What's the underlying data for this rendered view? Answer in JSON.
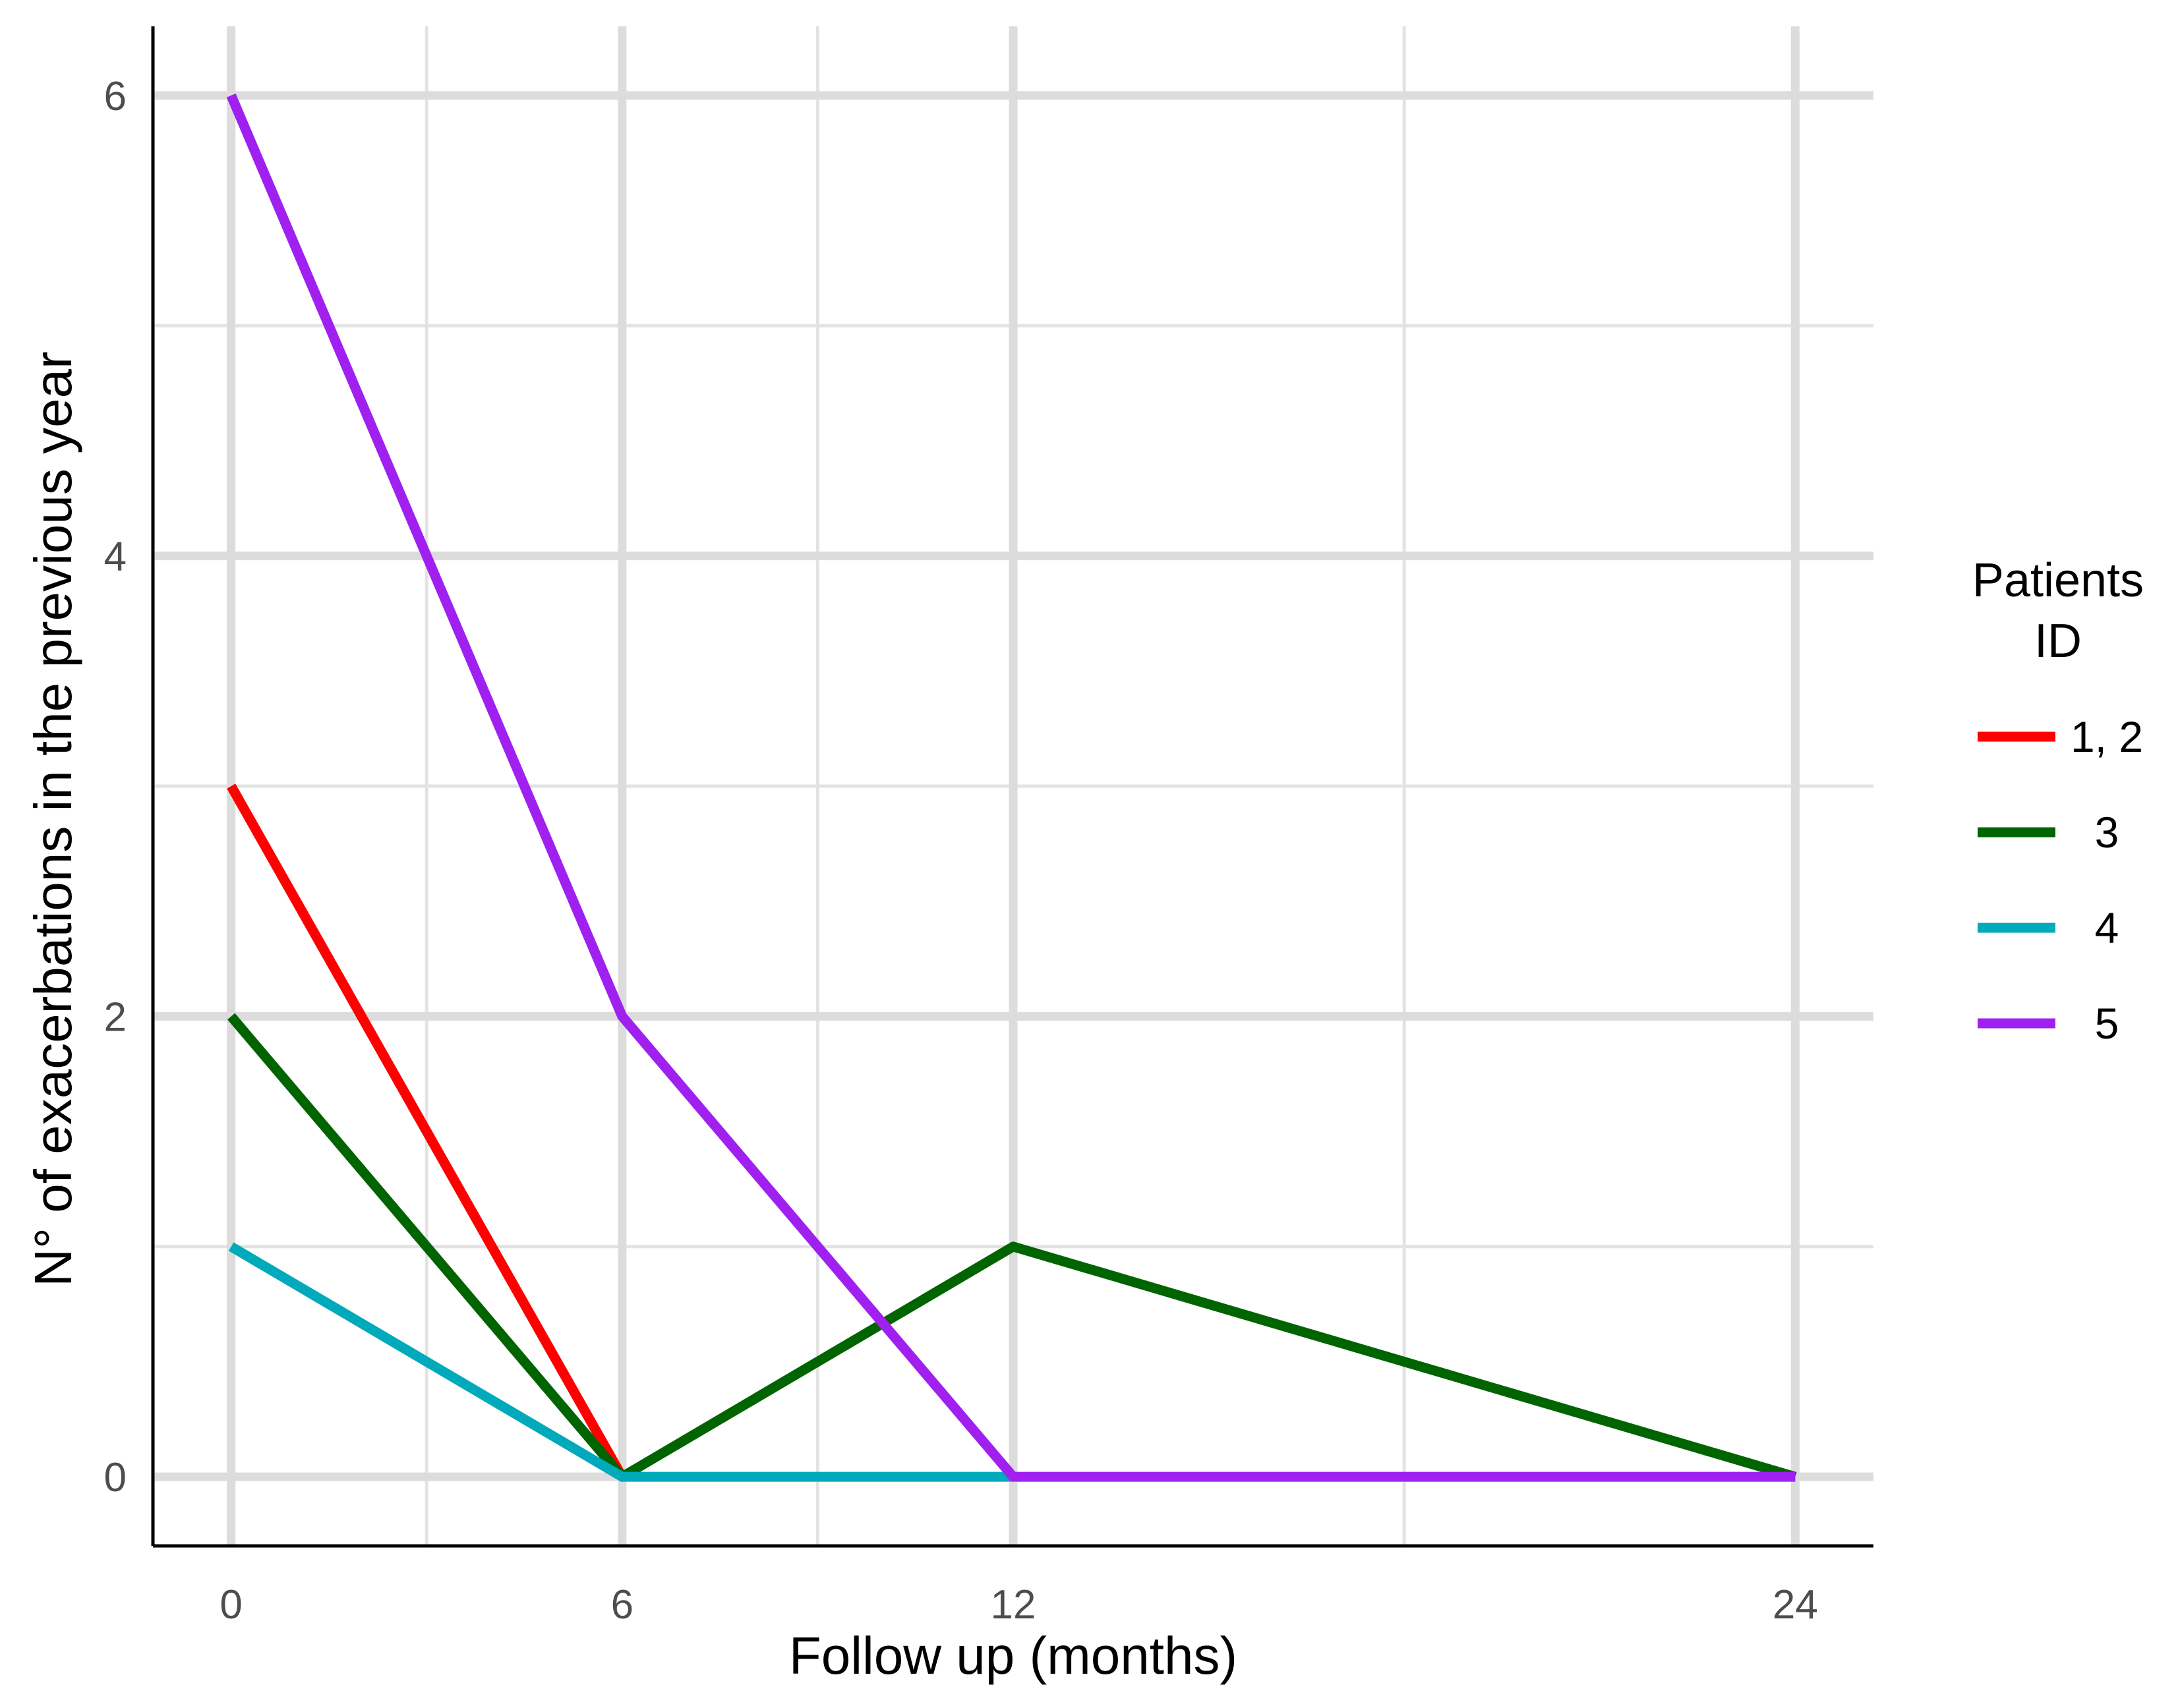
{
  "chart_data": {
    "type": "line",
    "xlabel": "Follow up (months)",
    "ylabel": "N° of exacerbations in the previous year",
    "x": [
      0,
      6,
      12,
      24
    ],
    "x_ticks": [
      "0",
      "6",
      "12",
      "24"
    ],
    "y_ticks": [
      "0",
      "2",
      "4",
      "6"
    ],
    "xlim": [
      -1.2,
      25.2
    ],
    "ylim": [
      -0.3,
      6.3
    ],
    "grid": true,
    "legend": {
      "title_lines": [
        "Patients",
        "ID"
      ],
      "placement": "right"
    },
    "series": [
      {
        "name": "1, 2",
        "color": "#ff0000",
        "values": [
          3,
          0,
          null,
          null
        ]
      },
      {
        "name": "3",
        "color": "#006400",
        "values": [
          2,
          0,
          1,
          0
        ]
      },
      {
        "name": "4",
        "color": "#00aabb",
        "values": [
          1,
          0,
          0,
          null
        ]
      },
      {
        "name": "5",
        "color": "#a020f0",
        "values": [
          6,
          2,
          0,
          0
        ]
      }
    ]
  }
}
